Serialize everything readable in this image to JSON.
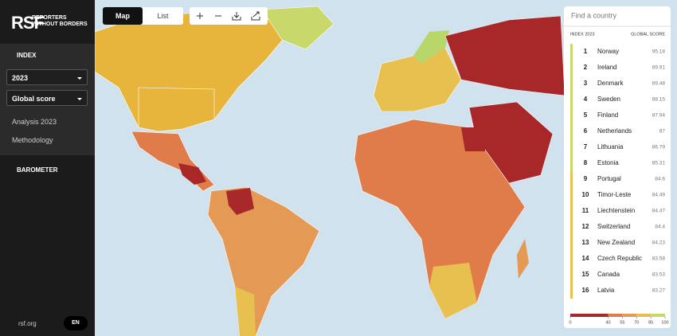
{
  "sidebar": {
    "logo_mark": "RSF",
    "logo_lines": [
      "REPORTERS",
      "WITHOUT BORDERS"
    ],
    "index": "INDEX",
    "year": "2023",
    "indicator": "Global score",
    "links": [
      "Analysis 2023",
      "Methodology"
    ],
    "barometer": "BAROMETER",
    "site": "rsf.org",
    "language": "EN"
  },
  "toolbar": {
    "tabs": [
      "Map",
      "List"
    ]
  },
  "ranking": {
    "search_placeholder": "Find a country",
    "col_index": "INDEX 2023",
    "col_score": "GLOBAL SCORE",
    "rows": [
      {
        "rank": 1,
        "country": "Norway",
        "score": 95.18
      },
      {
        "rank": 2,
        "country": "Ireland",
        "score": 89.91
      },
      {
        "rank": 3,
        "country": "Denmark",
        "score": 89.48
      },
      {
        "rank": 4,
        "country": "Sweden",
        "score": 88.15
      },
      {
        "rank": 5,
        "country": "Finland",
        "score": 87.94
      },
      {
        "rank": 6,
        "country": "Netherlands",
        "score": 87
      },
      {
        "rank": 7,
        "country": "Lithuania",
        "score": 86.79
      },
      {
        "rank": 8,
        "country": "Estonia",
        "score": 85.31
      },
      {
        "rank": 9,
        "country": "Portugal",
        "score": 84.6
      },
      {
        "rank": 10,
        "country": "Timor-Leste",
        "score": 84.49
      },
      {
        "rank": 11,
        "country": "Liechtenstein",
        "score": 84.47
      },
      {
        "rank": 12,
        "country": "Switzerland",
        "score": 84.4
      },
      {
        "rank": 13,
        "country": "New Zealand",
        "score": 84.23
      },
      {
        "rank": 14,
        "country": "Czech Republic",
        "score": 83.58
      },
      {
        "rank": 15,
        "country": "Canada",
        "score": 83.53
      },
      {
        "rank": 16,
        "country": "Latvia",
        "score": 83.27
      }
    ],
    "legend_ticks": [
      0,
      40,
      55,
      70,
      85,
      100
    ]
  }
}
